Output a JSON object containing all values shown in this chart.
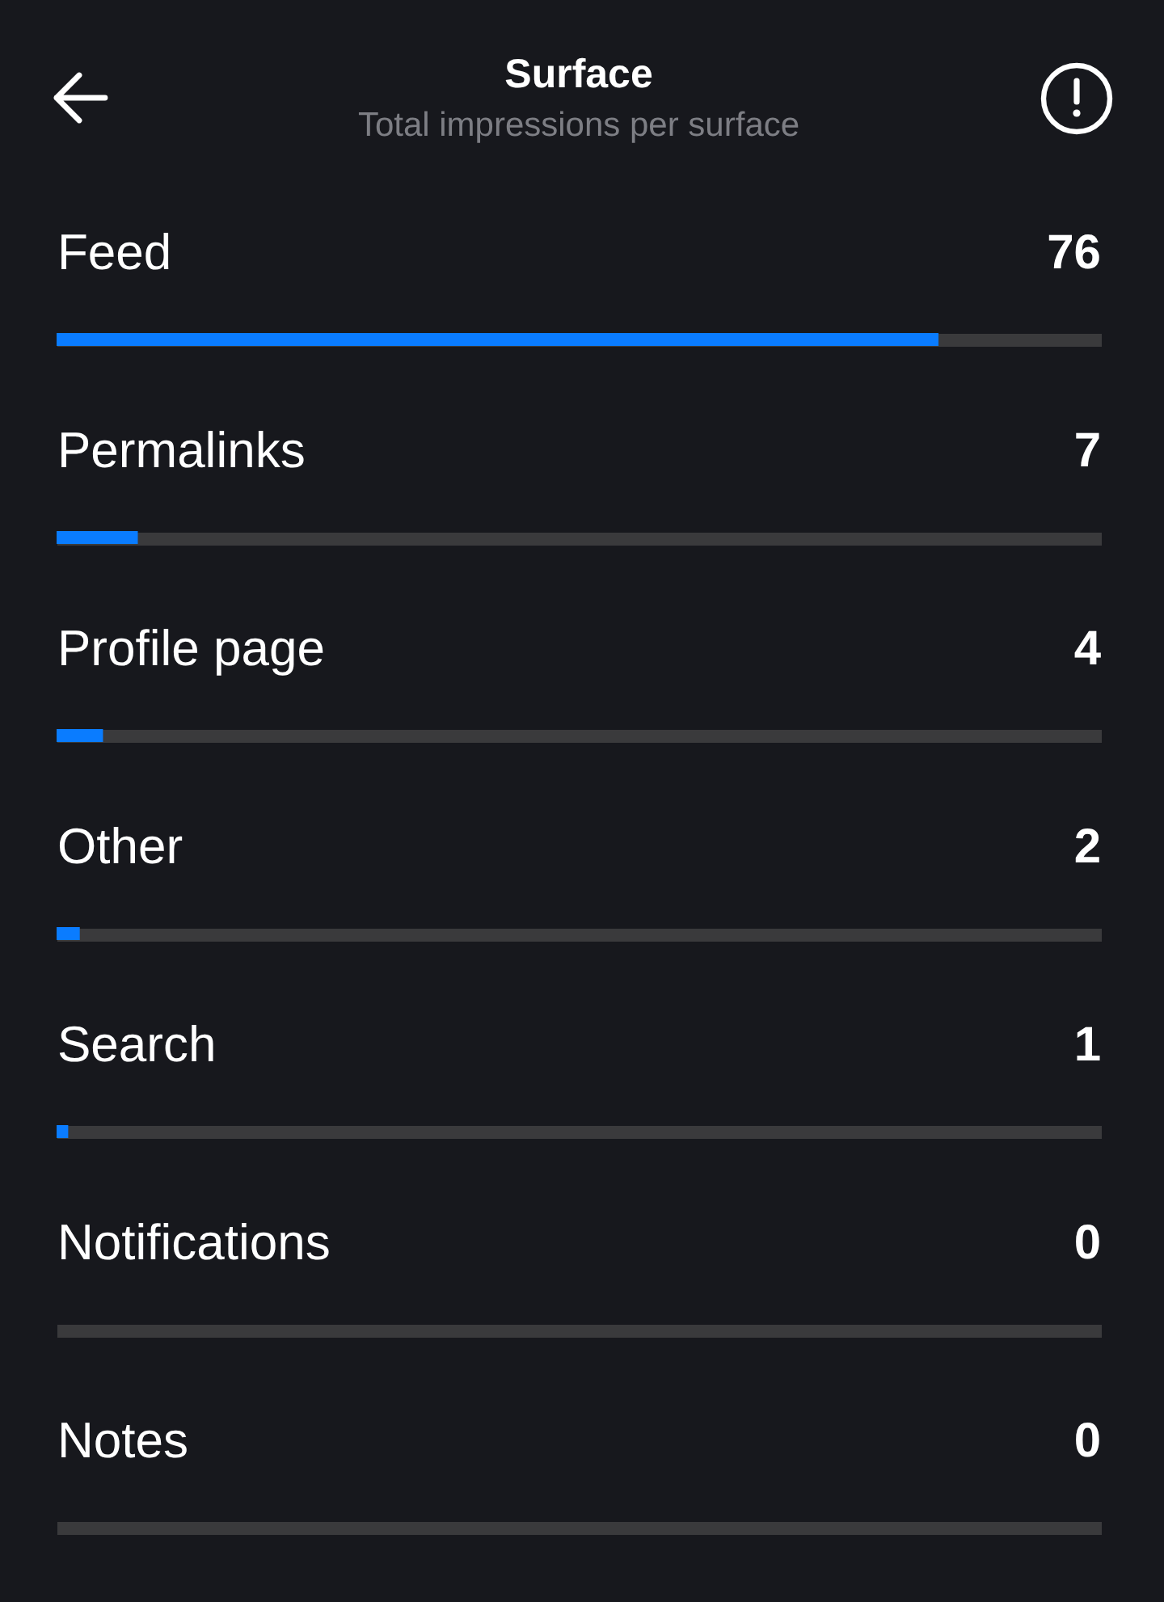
{
  "chart_data": {
    "type": "bar",
    "orientation": "horizontal",
    "title": "Surface",
    "subtitle": "Total impressions per surface",
    "categories": [
      "Feed",
      "Permalinks",
      "Profile page",
      "Other",
      "Search",
      "Notifications",
      "Notes"
    ],
    "values": [
      76,
      7,
      4,
      2,
      1,
      0,
      0
    ],
    "color": "#0a7cff",
    "xlim": [
      0,
      90
    ],
    "tick_labels": "y",
    "grid": "y",
    "data_labels": true
  }
}
